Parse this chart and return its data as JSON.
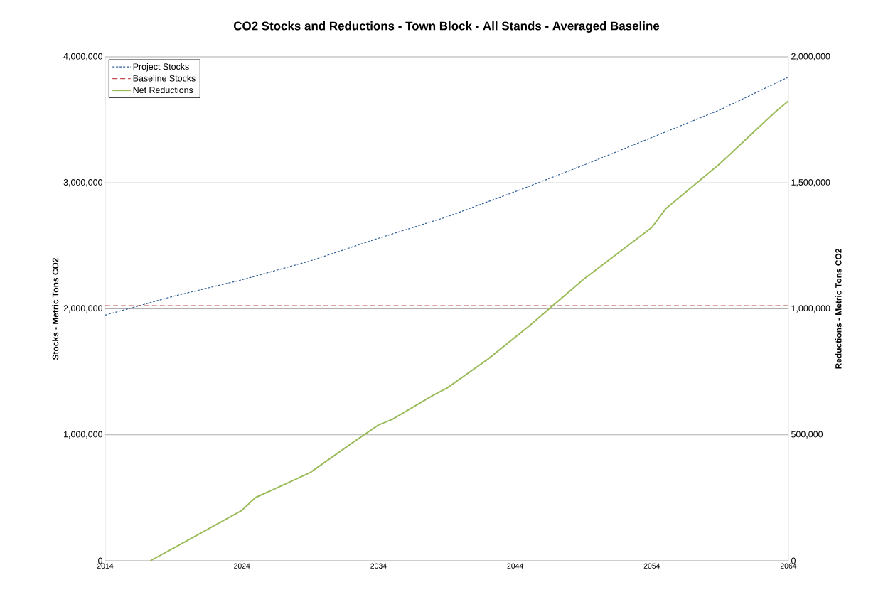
{
  "chart_data": {
    "type": "line",
    "title": "CO2 Stocks and Reductions - Town Block - All Stands - Averaged Baseline",
    "ylabel": "Stocks - Metric Tons CO2",
    "y2label": "Reductions - Metric Tons CO2",
    "xlim": [
      2014,
      2064
    ],
    "xticks": [
      2014,
      2024,
      2034,
      2044,
      2054,
      2064
    ],
    "ylim": [
      0,
      4000000
    ],
    "yticks": [
      0,
      {
        "value": 1000000,
        "label": "1,000,000"
      },
      {
        "value": 2000000,
        "label": "2,000,000"
      },
      {
        "value": 3000000,
        "label": "3,000,000"
      },
      {
        "value": 4000000,
        "label": "4,000,000"
      }
    ],
    "y2lim": [
      0,
      2000000
    ],
    "y2ticks": [
      0,
      {
        "value": 500000,
        "label": "500,000"
      },
      {
        "value": 1000000,
        "label": "1,000,000"
      },
      {
        "value": 1500000,
        "label": "1,500,000"
      },
      {
        "value": 2000000,
        "label": "2,000,000"
      }
    ],
    "grid": "y",
    "legend": "top left",
    "marker": "none",
    "series": [
      {
        "name": "Project Stocks",
        "color": "#2f5f98",
        "line_style": "dotted",
        "x": [
          2014,
          2019,
          2024,
          2029,
          2034,
          2039,
          2044,
          2049,
          2054,
          2059,
          2064
        ],
        "values": [
          1950000,
          2100000,
          2230000,
          2380000,
          2560000,
          2730000,
          2930000,
          3140000,
          3360000,
          3580000,
          3840000
        ]
      },
      {
        "name": "Baseline Stocks",
        "color": "#be4b48",
        "line_style": "dashed",
        "x": [
          2014,
          2064
        ],
        "values": [
          2025000,
          2025000
        ]
      },
      {
        "name": "Net Reductions",
        "color": "#9bbb59",
        "line_style": "solid",
        "axis": "y2",
        "x": [
          2017.3,
          2020,
          2024,
          2025,
          2027,
          2029,
          2032,
          2034,
          2035,
          2038,
          2039,
          2042,
          2045,
          2049,
          2054,
          2055,
          2059,
          2063,
          2064
        ],
        "values": [
          0,
          80000,
          200000,
          251000,
          300000,
          350000,
          465000,
          539000,
          561000,
          657000,
          685000,
          800000,
          931000,
          1117000,
          1323000,
          1396000,
          1577000,
          1780000,
          1825000
        ]
      }
    ]
  }
}
